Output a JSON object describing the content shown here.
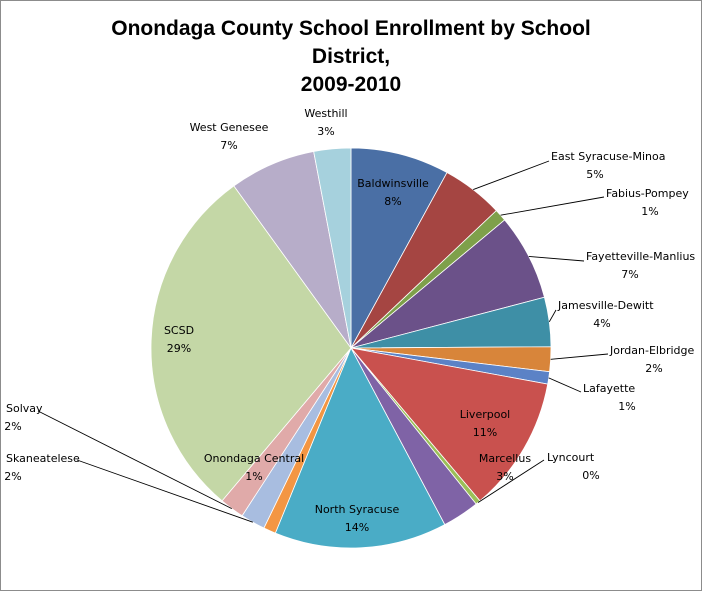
{
  "chart_data": {
    "type": "pie",
    "title_lines": [
      "Onondaga County School Enrollment by School",
      "District,",
      "2009-2010"
    ],
    "legend": "none",
    "slices": [
      {
        "name": "Baldwinsville",
        "value": 8,
        "label": "8%",
        "color": "#4a6fa5"
      },
      {
        "name": "East Syracuse-Minoa",
        "value": 5,
        "label": "5%",
        "color": "#a54542"
      },
      {
        "name": "Fabius-Pompey",
        "value": 1,
        "label": "1%",
        "color": "#7ea04a"
      },
      {
        "name": "Fayetteville-Manlius",
        "value": 7,
        "label": "7%",
        "color": "#6b5189"
      },
      {
        "name": "Jamesville-Dewitt",
        "value": 4,
        "label": "4%",
        "color": "#3e8fa6"
      },
      {
        "name": "Jordan-Elbridge",
        "value": 2,
        "label": "2%",
        "color": "#d8853a"
      },
      {
        "name": "Lafayette",
        "value": 1,
        "label": "1%",
        "color": "#5b82c6"
      },
      {
        "name": "Liverpool",
        "value": 11,
        "label": "11%",
        "color": "#c9514e"
      },
      {
        "name": "Lyncourt",
        "value": 0.4,
        "label": "0%",
        "color": "#9bbf58"
      },
      {
        "name": "Marcellus",
        "value": 3,
        "label": "3%",
        "color": "#7f63a6"
      },
      {
        "name": "North Syracuse",
        "value": 14,
        "label": "14%",
        "color": "#4aacc6"
      },
      {
        "name": "Onondaga Central",
        "value": 1,
        "label": "1%",
        "color": "#f39643"
      },
      {
        "name": "Skaneatelese",
        "value": 2,
        "label": "2%",
        "color": "#a8bde0"
      },
      {
        "name": "Solvay",
        "value": 2,
        "label": "2%",
        "color": "#e0aaa9"
      },
      {
        "name": "SCSD",
        "value": 29,
        "label": "29%",
        "color": "#c4d7a6"
      },
      {
        "name": "West Genesee",
        "value": 7,
        "label": "7%",
        "color": "#b7adc9"
      },
      {
        "name": "Westhill",
        "value": 3,
        "label": "3%",
        "color": "#a6d1dd"
      }
    ]
  }
}
